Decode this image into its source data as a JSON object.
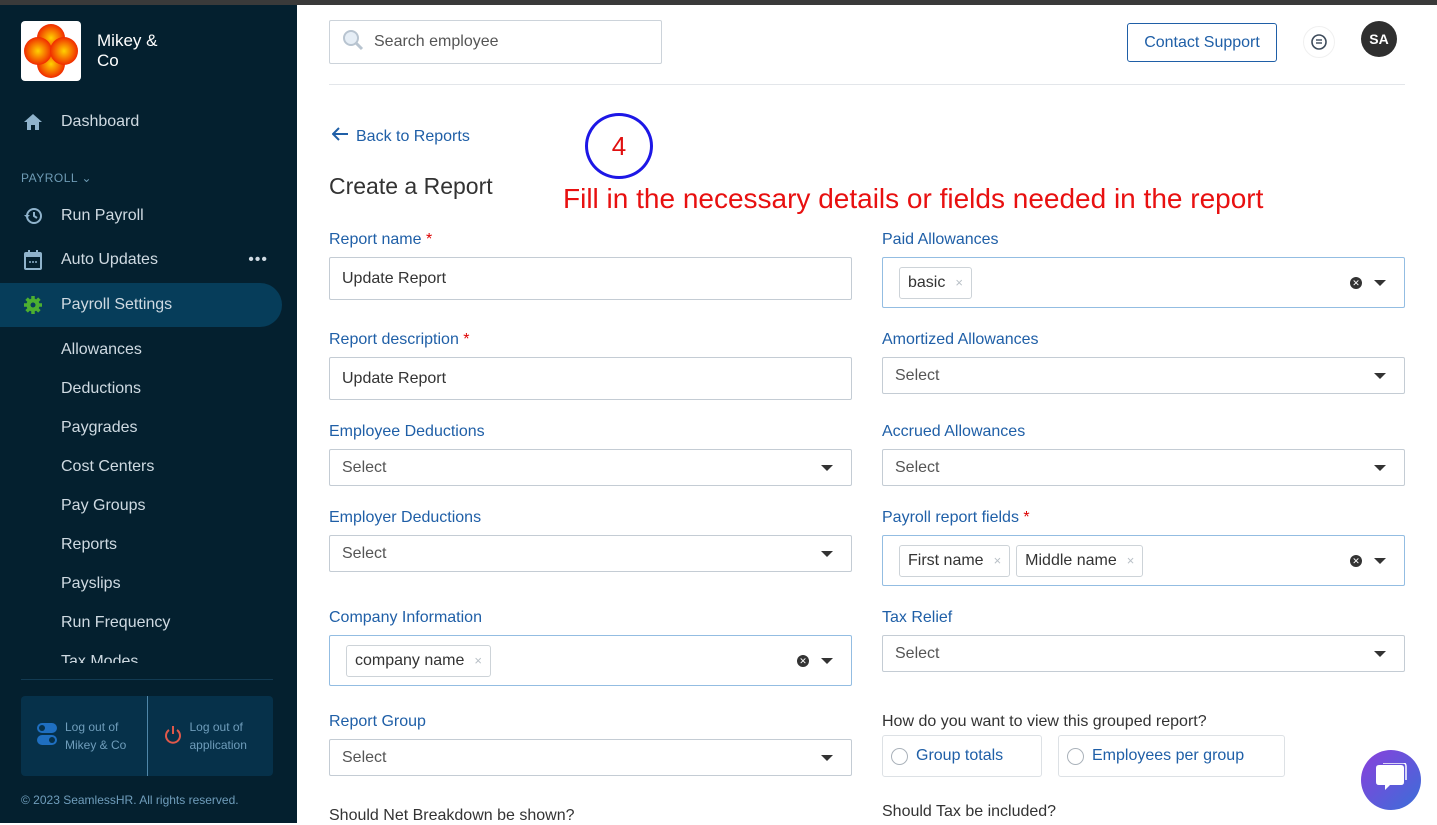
{
  "sidebar": {
    "company": "Mikey & Co",
    "nav": [
      {
        "label": "Dashboard",
        "icon": "home-icon"
      },
      {
        "label": "Run Payroll",
        "icon": "history-icon"
      },
      {
        "label": "Auto Updates",
        "icon": "calendar-icon"
      },
      {
        "label": "Payroll Settings",
        "icon": "gear-icon",
        "active": true
      }
    ],
    "section_label": "PAYROLL",
    "sub_items": [
      "Allowances",
      "Deductions",
      "Paygrades",
      "Cost Centers",
      "Pay Groups",
      "Reports",
      "Payslips",
      "Run Frequency",
      "Tax Modes"
    ],
    "logout_company": "Log out of Mikey & Co",
    "logout_app": "Log out of application",
    "copyright": "© 2023 SeamlessHR. All rights reserved."
  },
  "header": {
    "search_placeholder": "Search employee",
    "contact_support": "Contact Support",
    "avatar_initials": "SA"
  },
  "page": {
    "back_link": "Back to Reports",
    "title": "Create a Report",
    "annotation_step": "4",
    "annotation_text": "Fill in the necessary details or fields needed in the report"
  },
  "form": {
    "left": [
      {
        "label": "Report name",
        "required": true,
        "type": "text",
        "value": "Update Report"
      },
      {
        "label": "Report description",
        "required": true,
        "type": "text",
        "value": "Update Report"
      },
      {
        "label": "Employee Deductions",
        "type": "select",
        "placeholder": "Select"
      },
      {
        "label": "Employer Deductions",
        "type": "select",
        "placeholder": "Select"
      },
      {
        "label": "Company Information",
        "type": "multi",
        "chips": [
          "company name"
        ]
      },
      {
        "label": "Report Group",
        "type": "select",
        "placeholder": "Select"
      },
      {
        "label": "Should Net Breakdown be shown?",
        "type": "question"
      }
    ],
    "right": [
      {
        "label": "Paid Allowances",
        "type": "multi",
        "chips": [
          "basic"
        ]
      },
      {
        "label": "Amortized Allowances",
        "type": "select",
        "placeholder": "Select"
      },
      {
        "label": "Accrued Allowances",
        "type": "select",
        "placeholder": "Select"
      },
      {
        "label": "Payroll report fields",
        "required": true,
        "type": "multi",
        "chips": [
          "First name",
          "Middle name"
        ]
      },
      {
        "label": "Tax Relief",
        "type": "select",
        "placeholder": "Select"
      },
      {
        "label": "How do you want to view this grouped report?",
        "type": "question"
      },
      {
        "label": "Should Tax be included?",
        "type": "question"
      }
    ],
    "group_view_options": [
      "Group totals",
      "Employees per group"
    ]
  },
  "colors": {
    "accent": "#1f5fa7",
    "sidebar": "#04202f",
    "annotation": "#e81010"
  }
}
